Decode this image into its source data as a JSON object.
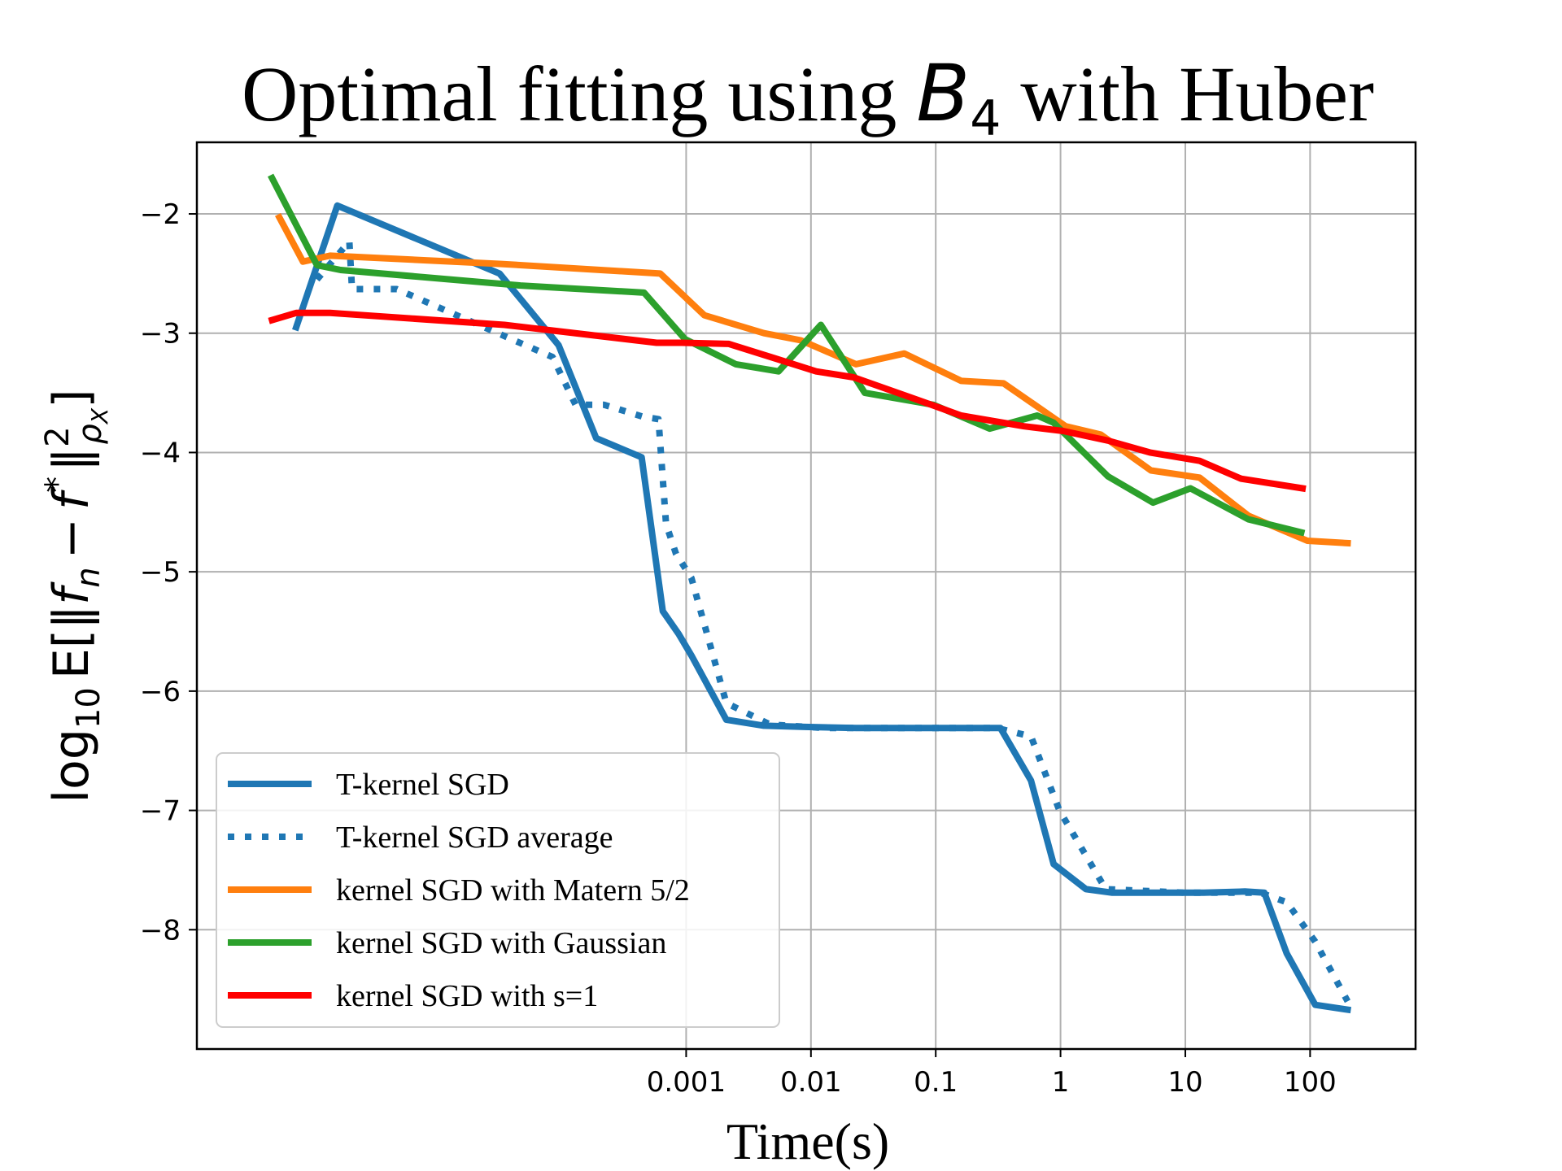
{
  "chart_data": {
    "type": "line",
    "title": {
      "prefix": "Optimal fitting using ",
      "math_symbol": "B",
      "math_subscript": "4",
      "suffix": " with Huber"
    },
    "xlabel": "Time(s)",
    "ylabel": {
      "func": "log",
      "func_sub": "10",
      "op": "E",
      "body_a": "‖f",
      "body_a_sub": "n",
      "minus": "−",
      "body_b": "f",
      "body_b_sup": "*",
      "norm": "‖",
      "norm_sup": "2",
      "norm_sub": "ρ",
      "norm_sub_sub": "X"
    },
    "x_scale": "log",
    "xlim": [
      1.2e-07,
      700
    ],
    "ylim": [
      -9.0,
      -1.4
    ],
    "x_ticks": [
      {
        "value": 0.001,
        "label": "0.001"
      },
      {
        "value": 0.01,
        "label": "0.01"
      },
      {
        "value": 0.1,
        "label": "0.1"
      },
      {
        "value": 1,
        "label": "1"
      },
      {
        "value": 10,
        "label": "10"
      },
      {
        "value": 100,
        "label": "100"
      }
    ],
    "y_ticks": [
      {
        "value": -2,
        "label": "−2"
      },
      {
        "value": -3,
        "label": "−3"
      },
      {
        "value": -4,
        "label": "−4"
      },
      {
        "value": -5,
        "label": "−5"
      },
      {
        "value": -6,
        "label": "−6"
      },
      {
        "value": -7,
        "label": "−7"
      },
      {
        "value": -8,
        "label": "−8"
      }
    ],
    "grid": true,
    "legend_position": "lower-left",
    "series": [
      {
        "name": "T-kernel SGD",
        "color": "#1f77b4",
        "style": "solid",
        "x": [
          7.5e-07,
          1.6e-06,
          3.2e-05,
          9.5e-05,
          0.00019,
          0.00044,
          0.00065,
          0.00087,
          0.0011,
          0.0021,
          0.0042,
          0.0089,
          0.023,
          0.062,
          0.13,
          0.33,
          0.58,
          0.88,
          1.6,
          2.6,
          6.8,
          14,
          30,
          43,
          65,
          110,
          200
        ],
        "y": [
          -2.95,
          -1.93,
          -2.5,
          -3.1,
          -3.88,
          -4.04,
          -5.33,
          -5.52,
          -5.7,
          -6.24,
          -6.29,
          -6.3,
          -6.31,
          -6.31,
          -6.31,
          -6.31,
          -6.75,
          -7.45,
          -7.66,
          -7.69,
          -7.69,
          -7.69,
          -7.68,
          -7.69,
          -8.2,
          -8.63,
          -8.67
        ]
      },
      {
        "name": "T-kernel SGD average",
        "color": "#1f77b4",
        "style": "dotted",
        "x": [
          1.1e-06,
          2e-06,
          2.1e-06,
          3.5e-06,
          4.8e-06,
          8.5e-05,
          0.00013,
          0.00022,
          0.00045,
          0.0006,
          0.00069,
          0.00083,
          0.0011,
          0.0021,
          0.0047,
          0.013,
          0.1,
          0.31,
          0.58,
          0.98,
          2.3,
          10,
          40,
          65,
          110,
          200
        ],
        "y": [
          -2.55,
          -2.23,
          -2.63,
          -2.63,
          -2.63,
          -3.2,
          -3.6,
          -3.6,
          -3.7,
          -3.72,
          -4.6,
          -4.85,
          -5.05,
          -6.1,
          -6.28,
          -6.31,
          -6.31,
          -6.31,
          -6.38,
          -7.0,
          -7.66,
          -7.69,
          -7.69,
          -7.77,
          -8.1,
          -8.6
        ]
      },
      {
        "name": "kernel SGD with Matern 5/2",
        "color": "#ff7f0e",
        "style": "solid",
        "x": [
          5.5e-07,
          8.5e-07,
          1.4e-06,
          3.3e-05,
          0.00062,
          0.0014,
          0.0042,
          0.0083,
          0.023,
          0.056,
          0.16,
          0.35,
          1.1,
          2.1,
          5.3,
          13,
          32,
          95,
          200
        ],
        "y": [
          -2.03,
          -2.4,
          -2.35,
          -2.42,
          -2.5,
          -2.85,
          -3.0,
          -3.06,
          -3.26,
          -3.17,
          -3.4,
          -3.42,
          -3.78,
          -3.85,
          -4.15,
          -4.21,
          -4.53,
          -4.74,
          -4.76
        ]
      },
      {
        "name": "kernel SGD with Gaussian",
        "color": "#2ca02c",
        "style": "solid",
        "x": [
          4.8e-07,
          1.1e-06,
          1.7e-06,
          4.7e-05,
          0.00046,
          0.00098,
          0.0025,
          0.0055,
          0.012,
          0.027,
          0.096,
          0.27,
          0.65,
          0.88,
          2.4,
          5.5,
          11,
          32,
          85
        ],
        "y": [
          -1.7,
          -2.43,
          -2.47,
          -2.6,
          -2.66,
          -3.05,
          -3.26,
          -3.32,
          -2.93,
          -3.5,
          -3.6,
          -3.8,
          -3.69,
          -3.75,
          -4.2,
          -4.42,
          -4.3,
          -4.56,
          -4.67
        ]
      },
      {
        "name": "kernel SGD with s=1",
        "color": "#ff0000",
        "style": "solid",
        "x": [
          4.8e-07,
          7.5e-07,
          1.4e-06,
          3.5e-05,
          0.00058,
          0.00092,
          0.0022,
          0.0051,
          0.011,
          0.022,
          0.072,
          0.16,
          0.51,
          1.05,
          2.4,
          5.2,
          13,
          28,
          87
        ],
        "y": [
          -2.89,
          -2.83,
          -2.83,
          -2.93,
          -3.08,
          -3.08,
          -3.09,
          -3.21,
          -3.32,
          -3.37,
          -3.56,
          -3.69,
          -3.78,
          -3.82,
          -3.9,
          -4.0,
          -4.07,
          -4.22,
          -4.3
        ]
      }
    ]
  }
}
